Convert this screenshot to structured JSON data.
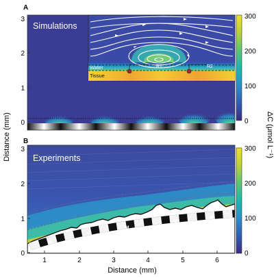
{
  "panels": [
    {
      "letter": "A",
      "label": "Simulations"
    },
    {
      "letter": "B",
      "label": "Experiments"
    }
  ],
  "inset": {
    "water_label": "Water",
    "tissue_label": "Tissue",
    "r1_label": "R1",
    "r2_label": "R2"
  },
  "axes": {
    "ylabel": "Distance (mm)",
    "xlabel": "Distance (mm)",
    "yticks_top": [
      "0",
      "1",
      "2",
      "3"
    ],
    "yticks_bottom": [
      "0",
      "1",
      "2",
      "3"
    ],
    "xticks": [
      "1",
      "2",
      "3",
      "4",
      "5",
      "6"
    ]
  },
  "colorbar": {
    "label": "ΔC (μmol L⁻¹)",
    "ticks_top": [
      "0",
      "100",
      "200",
      "300"
    ],
    "ticks_bottom": [
      "0",
      "100",
      "200",
      "300"
    ],
    "range": [
      0,
      300
    ],
    "colors": [
      "#3b2a85",
      "#2f5fb7",
      "#2b8fcf",
      "#1fb6b0",
      "#5cc870",
      "#b9d13d",
      "#f1de2e"
    ]
  },
  "mouth_marker": "M"
}
